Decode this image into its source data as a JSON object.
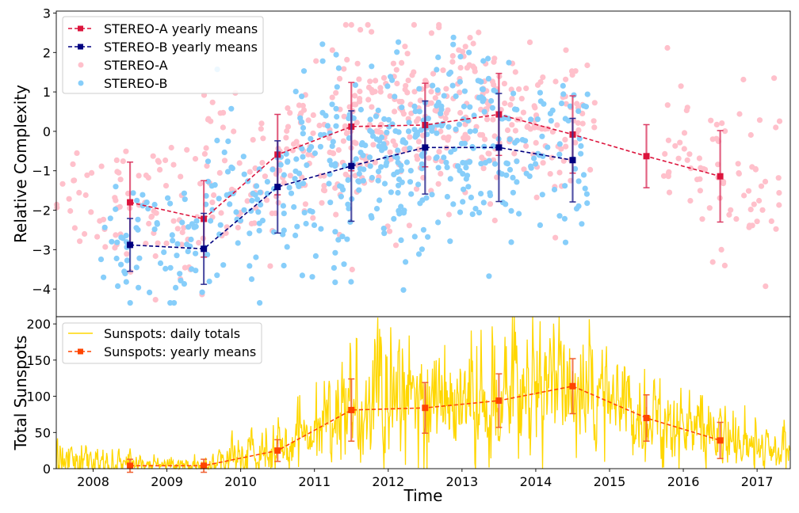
{
  "chart_data": [
    {
      "type": "scatter",
      "panel": "top",
      "ylabel": "Relative Complexity",
      "xlabel": "",
      "xlim": [
        2007.5,
        2017.45
      ],
      "ylim": [
        -4.7,
        3.05
      ],
      "yticks": [
        3,
        2,
        1,
        0,
        -1,
        -2,
        -3,
        -4
      ],
      "ytick_labels": [
        "3",
        "2",
        "1",
        "0",
        "−1",
        "−2",
        "−3",
        "−4"
      ],
      "grid": false,
      "legend": {
        "placement": "top-left",
        "entries": [
          {
            "label": "STEREO-A yearly means",
            "kind": "dashed-square",
            "color": "#dc143c"
          },
          {
            "label": "STEREO-B yearly means",
            "kind": "dashed-square",
            "color": "#000080"
          },
          {
            "label": "STEREO-A",
            "kind": "dot",
            "color": "#ffc0cb"
          },
          {
            "label": "STEREO-B",
            "kind": "dot",
            "color": "#87cefa"
          }
        ]
      },
      "series": [
        {
          "name": "STEREO-A yearly means",
          "color": "#dc143c",
          "x": [
            2008.5,
            2009.5,
            2010.5,
            2011.5,
            2012.5,
            2013.5,
            2014.5,
            2015.5,
            2016.5
          ],
          "y": [
            -1.8,
            -2.22,
            -0.59,
            0.12,
            0.16,
            0.43,
            -0.08,
            -0.63,
            -1.14
          ],
          "yerr": [
            1.02,
            0.97,
            1.02,
            1.12,
            1.06,
            1.04,
            0.98,
            0.8,
            1.16
          ]
        },
        {
          "name": "STEREO-B yearly means",
          "color": "#000080",
          "x": [
            2008.5,
            2009.5,
            2010.5,
            2011.5,
            2012.5,
            2013.5,
            2014.5
          ],
          "y": [
            -2.88,
            -2.98,
            -1.41,
            -0.88,
            -0.41,
            -0.41,
            -0.73
          ],
          "yerr": [
            0.67,
            0.9,
            1.17,
            1.4,
            1.18,
            1.37,
            1.06
          ]
        }
      ],
      "scatter_groups": [
        {
          "name": "STEREO-A",
          "color": "#ffc0cb",
          "years": [
            {
              "t0": 2007.5,
              "t1": 2008.5,
              "mean": -1.6,
              "sd": 0.85,
              "n": 40
            },
            {
              "t0": 2008.5,
              "t1": 2009.5,
              "mean": -2.1,
              "sd": 0.9,
              "n": 45
            },
            {
              "t0": 2009.5,
              "t1": 2010.5,
              "mean": -1.2,
              "sd": 1.0,
              "n": 55
            },
            {
              "t0": 2010.5,
              "t1": 2011.5,
              "mean": -0.2,
              "sd": 1.05,
              "n": 80
            },
            {
              "t0": 2011.5,
              "t1": 2012.5,
              "mean": 0.15,
              "sd": 1.05,
              "n": 110
            },
            {
              "t0": 2012.5,
              "t1": 2013.5,
              "mean": 0.3,
              "sd": 1.0,
              "n": 110
            },
            {
              "t0": 2013.5,
              "t1": 2014.8,
              "mean": 0.15,
              "sd": 1.0,
              "n": 90
            },
            {
              "t0": 2015.7,
              "t1": 2016.5,
              "mean": -0.8,
              "sd": 0.95,
              "n": 40
            },
            {
              "t0": 2016.5,
              "t1": 2017.35,
              "mean": -1.3,
              "sd": 1.1,
              "n": 40
            }
          ]
        },
        {
          "name": "STEREO-B",
          "color": "#87cefa",
          "years": [
            {
              "t0": 2008.1,
              "t1": 2008.5,
              "mean": -2.9,
              "sd": 0.6,
              "n": 20
            },
            {
              "t0": 2008.5,
              "t1": 2009.5,
              "mean": -2.9,
              "sd": 0.8,
              "n": 50
            },
            {
              "t0": 2009.5,
              "t1": 2010.5,
              "mean": -1.9,
              "sd": 1.1,
              "n": 60
            },
            {
              "t0": 2010.5,
              "t1": 2011.5,
              "mean": -1.1,
              "sd": 1.3,
              "n": 95
            },
            {
              "t0": 2011.5,
              "t1": 2012.5,
              "mean": -0.6,
              "sd": 1.2,
              "n": 120
            },
            {
              "t0": 2012.5,
              "t1": 2013.5,
              "mean": -0.4,
              "sd": 1.25,
              "n": 110
            },
            {
              "t0": 2013.5,
              "t1": 2014.75,
              "mean": -0.6,
              "sd": 1.1,
              "n": 80
            }
          ]
        }
      ]
    },
    {
      "type": "line",
      "panel": "bottom",
      "ylabel": "Total Sunspots",
      "xlabel": "Time",
      "xlim": [
        2007.5,
        2017.45
      ],
      "ylim": [
        0,
        210
      ],
      "xticks": [
        2008,
        2009,
        2010,
        2011,
        2012,
        2013,
        2014,
        2015,
        2016,
        2017
      ],
      "xtick_labels": [
        "2008",
        "2009",
        "2010",
        "2011",
        "2012",
        "2013",
        "2014",
        "2015",
        "2016",
        "2017"
      ],
      "yticks": [
        0,
        50,
        100,
        150,
        200
      ],
      "ytick_labels": [
        "0",
        "50",
        "100",
        "150",
        "200"
      ],
      "grid": false,
      "legend": {
        "placement": "top-left",
        "entries": [
          {
            "label": "Sunspots: daily totals",
            "kind": "line",
            "color": "#ffd700"
          },
          {
            "label": "Sunspots: yearly means",
            "kind": "dashed-square",
            "color": "#ff4500"
          }
        ]
      },
      "series": [
        {
          "name": "Sunspots: yearly means",
          "color": "#ff4500",
          "x": [
            2008.5,
            2009.5,
            2010.5,
            2011.5,
            2012.5,
            2013.5,
            2014.5,
            2015.5,
            2016.5
          ],
          "y": [
            4,
            4,
            25,
            81,
            84,
            94,
            114,
            70,
            39
          ],
          "yerr": [
            9,
            9,
            15,
            43,
            35,
            37,
            38,
            32,
            25
          ]
        }
      ],
      "daily_envelope": {
        "name": "Sunspots: daily totals",
        "color": "#ffd700",
        "x": [
          2007.5,
          2008.0,
          2008.5,
          2009.0,
          2009.5,
          2010.0,
          2010.5,
          2011.0,
          2011.5,
          2012.0,
          2012.5,
          2013.0,
          2013.5,
          2014.0,
          2014.5,
          2015.0,
          2015.5,
          2016.0,
          2016.5,
          2017.0,
          2017.45
        ],
        "mean": [
          10,
          7,
          5,
          3,
          4,
          14,
          25,
          45,
          80,
          90,
          80,
          85,
          92,
          120,
          110,
          85,
          70,
          55,
          40,
          25,
          20
        ],
        "amplitude": [
          15,
          15,
          10,
          6,
          10,
          18,
          22,
          35,
          45,
          50,
          45,
          45,
          50,
          55,
          50,
          40,
          35,
          30,
          25,
          20,
          18
        ],
        "max": 210
      }
    }
  ]
}
